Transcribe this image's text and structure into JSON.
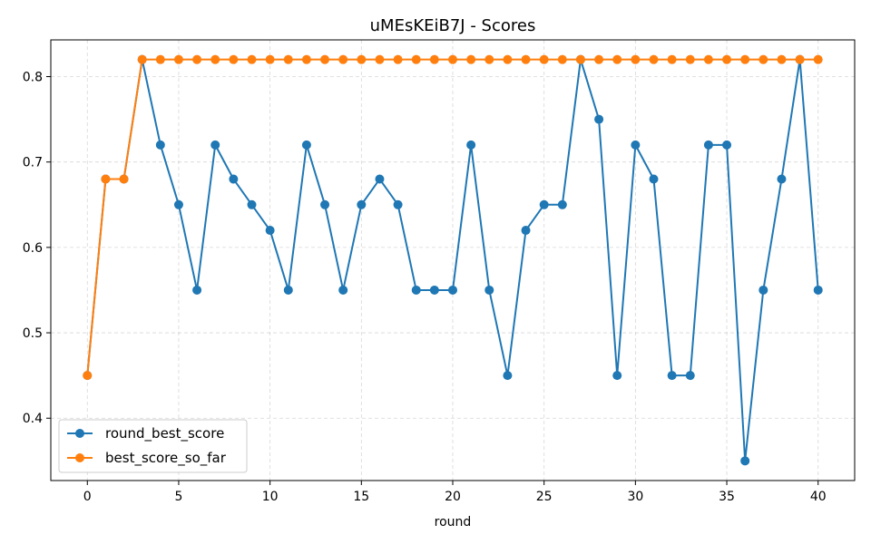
{
  "chart_data": {
    "type": "line",
    "title": "uMEsKEiB7J - Scores",
    "xlabel": "round",
    "ylabel": "",
    "xlim": [
      -2,
      42
    ],
    "ylim": [
      0.327,
      0.843
    ],
    "xticks": [
      0,
      5,
      10,
      15,
      20,
      25,
      30,
      35,
      40
    ],
    "yticks": [
      0.4,
      0.5,
      0.6,
      0.7,
      0.8
    ],
    "grid": true,
    "legend": "bottom-left",
    "x": [
      0,
      1,
      2,
      3,
      4,
      5,
      6,
      7,
      8,
      9,
      10,
      11,
      12,
      13,
      14,
      15,
      16,
      17,
      18,
      19,
      20,
      21,
      22,
      23,
      24,
      25,
      26,
      27,
      28,
      29,
      30,
      31,
      32,
      33,
      34,
      35,
      36,
      37,
      38,
      39,
      40
    ],
    "series": [
      {
        "name": "round_best_score",
        "color": "#1f77b4",
        "values": [
          0.45,
          0.68,
          0.68,
          0.82,
          0.72,
          0.65,
          0.55,
          0.72,
          0.68,
          0.65,
          0.62,
          0.55,
          0.72,
          0.65,
          0.55,
          0.65,
          0.68,
          0.65,
          0.55,
          0.55,
          0.55,
          0.72,
          0.55,
          0.45,
          0.62,
          0.65,
          0.65,
          0.82,
          0.75,
          0.45,
          0.72,
          0.68,
          0.45,
          0.45,
          0.72,
          0.72,
          0.35,
          0.55,
          0.68,
          0.82,
          0.55
        ]
      },
      {
        "name": "best_score_so_far",
        "color": "#ff7f0e",
        "values": [
          0.45,
          0.68,
          0.68,
          0.82,
          0.82,
          0.82,
          0.82,
          0.82,
          0.82,
          0.82,
          0.82,
          0.82,
          0.82,
          0.82,
          0.82,
          0.82,
          0.82,
          0.82,
          0.82,
          0.82,
          0.82,
          0.82,
          0.82,
          0.82,
          0.82,
          0.82,
          0.82,
          0.82,
          0.82,
          0.82,
          0.82,
          0.82,
          0.82,
          0.82,
          0.82,
          0.82,
          0.82,
          0.82,
          0.82,
          0.82,
          0.82
        ]
      }
    ]
  }
}
